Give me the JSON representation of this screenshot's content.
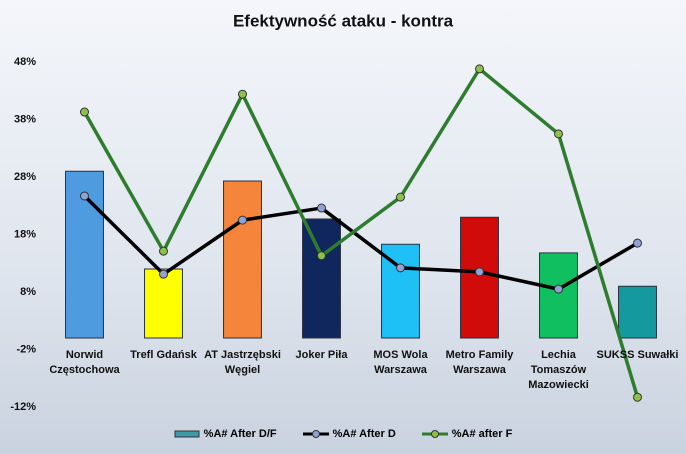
{
  "chart_data": {
    "type": "bar-line",
    "title": "Efektywność ataku - kontra",
    "categories": [
      "Norwid Częstochowa",
      "Trefl Gdańsk",
      "AT Jastrzębski Węgiel",
      "Joker Piła",
      "MOS Wola Warszawa",
      "Metro Family Warszawa",
      "Lechia Tomaszów Mazowiecki",
      "SUKSS Suwałki"
    ],
    "series": [
      {
        "name": "%A# After D/F",
        "type": "bar",
        "color": "#3d9aa6",
        "colors": [
          "#4f9be0",
          "#ffff00",
          "#f5853a",
          "#10275e",
          "#1ec0f5",
          "#d10a0a",
          "#10c060",
          "#14999e"
        ],
        "values": [
          29.0,
          12.0,
          27.3,
          20.7,
          16.3,
          21.0,
          14.8,
          9.0
        ]
      },
      {
        "name": "%A# After D",
        "type": "line",
        "color": "#000000",
        "values": [
          24.7,
          11.1,
          20.5,
          22.6,
          12.2,
          11.5,
          8.5,
          16.5
        ]
      },
      {
        "name": "%A# after F",
        "type": "line",
        "color": "#2e7d2e",
        "values": [
          39.3,
          15.1,
          42.4,
          14.3,
          24.5,
          46.8,
          35.5,
          -10.3
        ]
      }
    ],
    "ylim": [
      -12,
      48
    ],
    "yticks": [
      {
        "value": -12,
        "label": "-12%"
      },
      {
        "value": -2,
        "label": "-2%"
      },
      {
        "value": 8,
        "label": "8%"
      },
      {
        "value": 18,
        "label": "18%"
      },
      {
        "value": 28,
        "label": "28%"
      },
      {
        "value": 38,
        "label": "38%"
      },
      {
        "value": 48,
        "label": "48%"
      }
    ],
    "grid": false,
    "legend": "bottom"
  }
}
